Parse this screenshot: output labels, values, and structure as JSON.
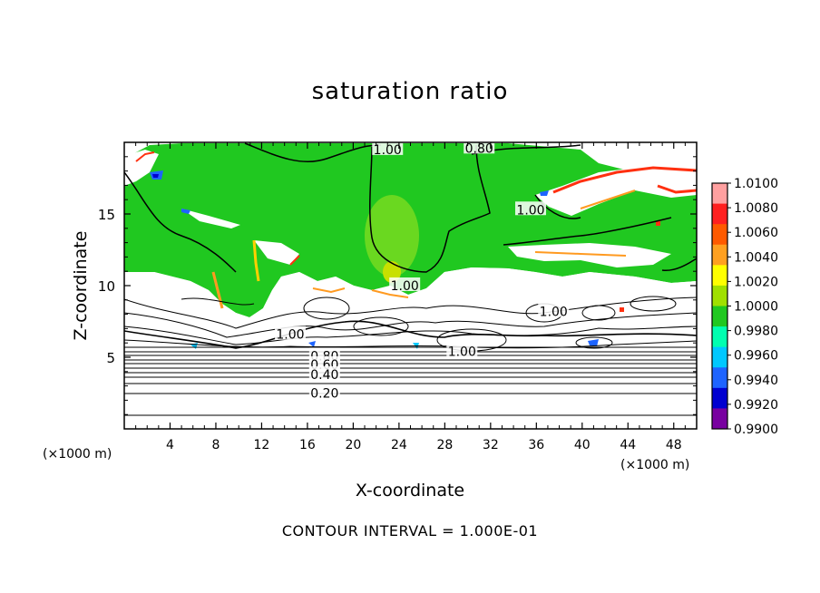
{
  "chart_data": {
    "type": "heatmap",
    "title": "saturation ratio",
    "xlabel": "X-coordinate",
    "ylabel": "Z-coordinate",
    "x_unit_label_left": "(×1000 m)",
    "x_unit_label_right": "(×1000 m)",
    "x_ticks": [
      "4",
      "8",
      "12",
      "16",
      "20",
      "24",
      "28",
      "32",
      "36",
      "40",
      "44",
      "48"
    ],
    "y_ticks": [
      "5",
      "10",
      "15"
    ],
    "xlim": [
      0,
      50
    ],
    "ylim": [
      0,
      20
    ],
    "colorbar": {
      "min": 0.99,
      "max": 1.01,
      "labels": [
        "1.0100",
        "1.0080",
        "1.0060",
        "1.0040",
        "1.0020",
        "1.0000",
        "0.9980",
        "0.9960",
        "0.9940",
        "0.9920",
        "0.9900"
      ],
      "colors": [
        "#ffa0a0",
        "#ff2020",
        "#ff5a00",
        "#ffa020",
        "#ffff00",
        "#a0e000",
        "#20c820",
        "#00ffb0",
        "#00c8ff",
        "#1e64ff",
        "#0000d0",
        "#7800a0"
      ]
    },
    "contour_labels": [
      {
        "text": "1.00",
        "x": 23,
        "y": 19.5
      },
      {
        "text": "0.80",
        "x": 31,
        "y": 19.6
      },
      {
        "text": "1.00",
        "x": 35.5,
        "y": 15.3
      },
      {
        "text": "1.00",
        "x": 24.5,
        "y": 10.0
      },
      {
        "text": "1.00",
        "x": 37.5,
        "y": 8.2
      },
      {
        "text": "1.00",
        "x": 14.5,
        "y": 6.6
      },
      {
        "text": "1.00",
        "x": 29.5,
        "y": 5.4
      },
      {
        "text": "0.80",
        "x": 17.5,
        "y": 5.1
      },
      {
        "text": "0.60",
        "x": 17.5,
        "y": 4.5
      },
      {
        "text": "0.40",
        "x": 17.5,
        "y": 3.8
      },
      {
        "text": "0.20",
        "x": 17.5,
        "y": 2.5
      }
    ],
    "grid": false,
    "legend": "right colorbar"
  },
  "footer": "CONTOUR INTERVAL = 1.000E-01"
}
